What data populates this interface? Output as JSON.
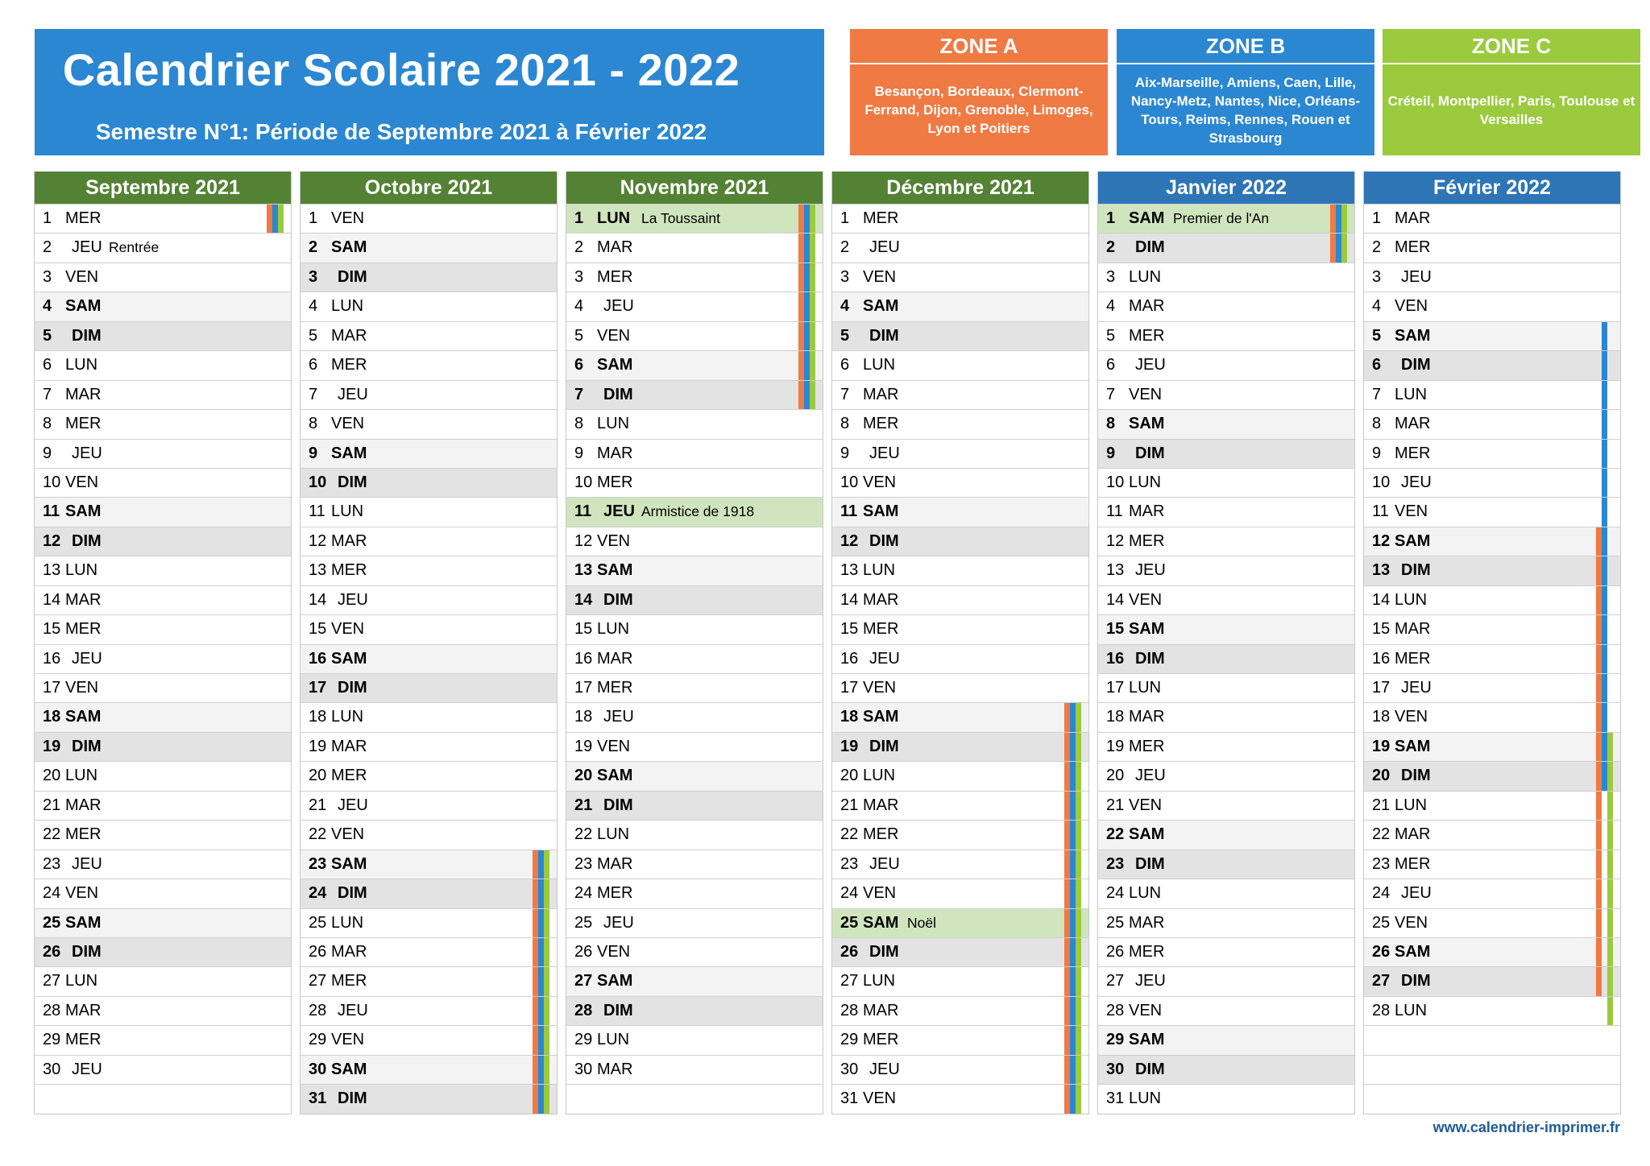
{
  "header": {
    "title": "Calendrier Scolaire 2021 - 2022",
    "subtitle": "Semestre N°1: Période de Septembre 2021 à Février 2022"
  },
  "colors": {
    "zone_a": "#ef7a43",
    "zone_b": "#2b87d1",
    "zone_c": "#9bca3e",
    "month_header_2021": "#548235",
    "month_header_2022": "#2e75b6",
    "holiday_row": "#d0e5bd"
  },
  "zones": [
    {
      "name": "ZONE A",
      "cities": "Besançon, Bordeaux, Clermont-Ferrand, Dijon, Grenoble, Limoges, Lyon et Poitiers"
    },
    {
      "name": "ZONE B",
      "cities": "Aix-Marseille, Amiens, Caen, Lille, Nancy-Metz, Nantes, Nice, Orléans-Tours, Reims, Rennes, Rouen et Strasbourg"
    },
    {
      "name": "ZONE C",
      "cities": "Créteil, Montpellier, Paris, Toulouse et Versailles"
    }
  ],
  "months": [
    {
      "name": "Septembre 2021",
      "days": 30,
      "start": "MER",
      "notes": {
        "2": "Rentrée"
      },
      "holidays": [],
      "vacations": {
        "1": "ABC"
      }
    },
    {
      "name": "Octobre 2021",
      "days": 31,
      "start": "VEN",
      "notes": {},
      "holidays": [],
      "vacations": {
        "23": "ABC",
        "24": "ABC",
        "25": "ABC",
        "26": "ABC",
        "27": "ABC",
        "28": "ABC",
        "29": "ABC",
        "30": "ABC",
        "31": "ABC"
      }
    },
    {
      "name": "Novembre 2021",
      "days": 30,
      "start": "LUN",
      "notes": {
        "1": "La Toussaint",
        "11": "Armistice de 1918"
      },
      "holidays": [
        1,
        11
      ],
      "vacations": {
        "1": "ABC",
        "2": "ABC",
        "3": "ABC",
        "4": "ABC",
        "5": "ABC",
        "6": "ABC",
        "7": "ABC"
      }
    },
    {
      "name": "Décembre 2021",
      "days": 31,
      "start": "MER",
      "notes": {
        "25": "Noël"
      },
      "holidays": [
        25
      ],
      "vacations": {
        "18": "ABC",
        "19": "ABC",
        "20": "ABC",
        "21": "ABC",
        "22": "ABC",
        "23": "ABC",
        "24": "ABC",
        "25": "ABC",
        "26": "ABC",
        "27": "ABC",
        "28": "ABC",
        "29": "ABC",
        "30": "ABC",
        "31": "ABC"
      }
    },
    {
      "name": "Janvier 2022",
      "days": 31,
      "start": "SAM",
      "notes": {
        "1": "Premier de l'An"
      },
      "holidays": [
        1
      ],
      "vacations": {
        "1": "ABC",
        "2": "ABC"
      }
    },
    {
      "name": "Février 2022",
      "days": 28,
      "start": "MAR",
      "notes": {},
      "holidays": [],
      "vacations": {
        "5": "B",
        "6": "B",
        "7": "B",
        "8": "B",
        "9": "B",
        "10": "B",
        "11": "B",
        "12": "AB",
        "13": "AB",
        "14": "AB",
        "15": "AB",
        "16": "AB",
        "17": "AB",
        "18": "AB",
        "19": "ABC",
        "20": "ABC",
        "21": "AC",
        "22": "AC",
        "23": "AC",
        "24": "AC",
        "25": "AC",
        "26": "AC",
        "27": "AC",
        "28": "C"
      }
    }
  ],
  "weekdays": [
    "LUN",
    "MAR",
    "MER",
    "JEU",
    "VEN",
    "SAM",
    "DIM"
  ],
  "rows_per_month": 31,
  "footer": {
    "url": "www.calendrier-imprimer.fr"
  }
}
